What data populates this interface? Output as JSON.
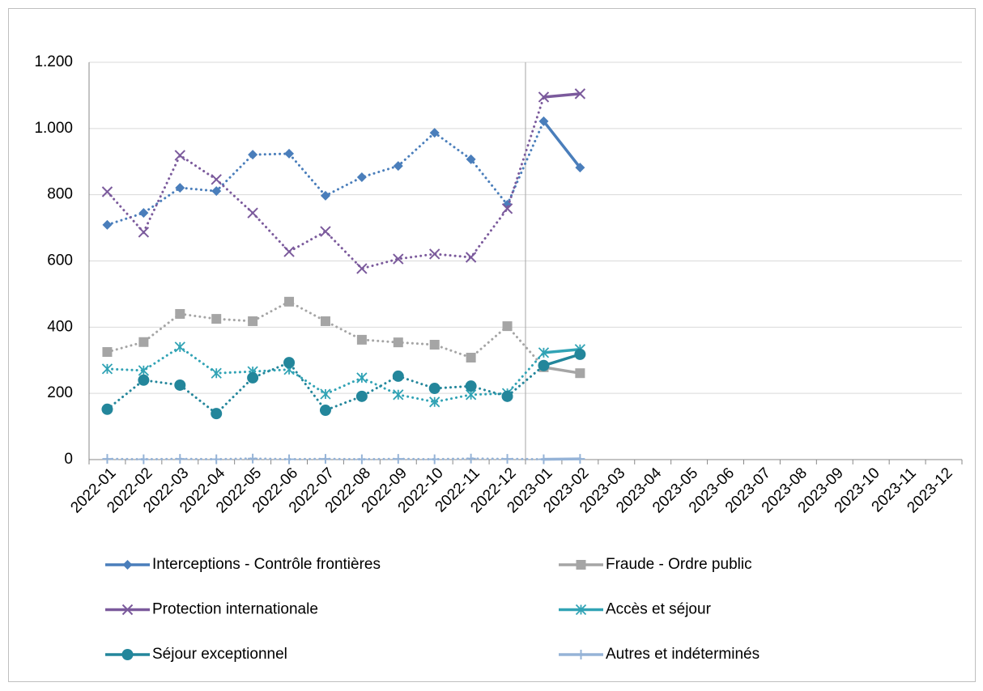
{
  "chart_data": {
    "type": "line",
    "categories": [
      "2022-01",
      "2022-02",
      "2022-03",
      "2022-04",
      "2022-05",
      "2022-06",
      "2022-07",
      "2022-08",
      "2022-09",
      "2022-10",
      "2022-11",
      "2022-12",
      "2023-01",
      "2023-02",
      "2023-03",
      "2023-04",
      "2023-05",
      "2023-06",
      "2023-07",
      "2023-08",
      "2023-09",
      "2023-10",
      "2023-11",
      "2023-12"
    ],
    "solid_from": "2023-01",
    "ylim": [
      0,
      1200
    ],
    "yticks": [
      0,
      200,
      400,
      600,
      800,
      {
        "value": 1000,
        "label": "1.000"
      },
      {
        "value": 1200,
        "label": "1.200"
      }
    ],
    "grid": true,
    "legend": "bottom",
    "series": [
      {
        "name": "Interceptions - Contrôle frontières",
        "color": "#4a7ebb",
        "marker": "diamond",
        "values": [
          709,
          745,
          821,
          811,
          921,
          924,
          797,
          853,
          887,
          987,
          907,
          770,
          1022,
          882,
          null,
          null,
          null,
          null,
          null,
          null,
          null,
          null,
          null,
          null
        ]
      },
      {
        "name": "Fraude - Ordre public",
        "color": "#a5a5a5",
        "marker": "square",
        "values": [
          325,
          355,
          440,
          425,
          418,
          477,
          418,
          362,
          354,
          347,
          308,
          403,
          279,
          261,
          null,
          null,
          null,
          null,
          null,
          null,
          null,
          null,
          null,
          null
        ]
      },
      {
        "name": "Protection internationale",
        "color": "#7b5a9c",
        "marker": "x",
        "values": [
          809,
          687,
          919,
          846,
          745,
          628,
          689,
          577,
          606,
          621,
          611,
          758,
          1095,
          1105,
          null,
          null,
          null,
          null,
          null,
          null,
          null,
          null,
          null,
          null
        ]
      },
      {
        "name": "Accès et séjour",
        "color": "#31a3b5",
        "marker": "asterisk",
        "values": [
          274,
          269,
          340,
          261,
          266,
          272,
          198,
          247,
          196,
          174,
          196,
          200,
          323,
          333,
          null,
          null,
          null,
          null,
          null,
          null,
          null,
          null,
          null,
          null
        ]
      },
      {
        "name": "Séjour exceptionnel",
        "color": "#23869b",
        "marker": "circle",
        "values": [
          152,
          240,
          225,
          139,
          247,
          293,
          149,
          191,
          252,
          215,
          222,
          191,
          284,
          318,
          null,
          null,
          null,
          null,
          null,
          null,
          null,
          null,
          null,
          null
        ]
      },
      {
        "name": "Autres et indéterminés",
        "color": "#95b3d7",
        "marker": "plus",
        "values": [
          2,
          1,
          2,
          1,
          3,
          1,
          2,
          1,
          2,
          1,
          3,
          2,
          1,
          2,
          null,
          null,
          null,
          null,
          null,
          null,
          null,
          null,
          null,
          null
        ]
      }
    ]
  }
}
